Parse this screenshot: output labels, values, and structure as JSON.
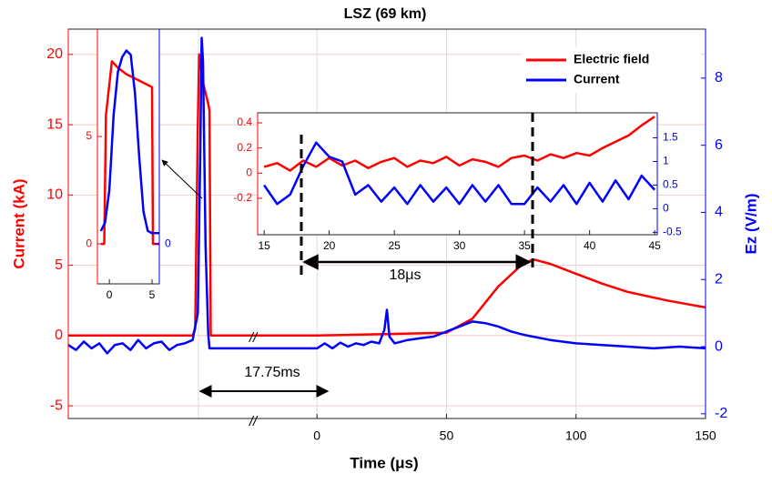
{
  "chart_data": [
    {
      "type": "line",
      "title": "LSZ (69 km)",
      "xlabel": "Time (μs)",
      "ylabel": "Current (kA)",
      "y2label": "Ez (V/m)",
      "xlim": [
        -96,
        150
      ],
      "xticks": [
        0,
        50,
        100,
        150
      ],
      "ylim": [
        -5.9,
        21.8
      ],
      "yticks": [
        -5,
        0,
        5,
        10,
        15,
        20
      ],
      "y2lim": [
        -2.14,
        9.46
      ],
      "y2ticks": [
        -2,
        0,
        2,
        4,
        6,
        8
      ],
      "grid": true,
      "legend": "upper right",
      "series": [
        {
          "name": "Electric field",
          "color": "#ff0000",
          "x": [
            -96,
            -48,
            -47,
            -46,
            -45.5,
            -44,
            -42,
            -41.5,
            -41,
            0,
            50,
            60,
            70,
            80,
            84,
            90,
            100,
            110,
            120,
            135,
            150
          ],
          "values": [
            0,
            0,
            0.5,
            15,
            20,
            18,
            16.5,
            16,
            0,
            0,
            0.2,
            1.2,
            3.5,
            5.2,
            5.4,
            5.1,
            4.4,
            3.7,
            3.1,
            2.5,
            2
          ]
        },
        {
          "name": "Current",
          "color": "#0000ff",
          "axis": "y2",
          "x": [
            -96,
            -93,
            -90,
            -87,
            -84,
            -81,
            -78,
            -75,
            -72,
            -69,
            -66,
            -63,
            -60,
            -57,
            -54,
            -51,
            -48,
            -46,
            -45,
            -44.5,
            -44,
            -43,
            -42,
            -41.5,
            0,
            3,
            6,
            9,
            12,
            15,
            18,
            21,
            24,
            26,
            27,
            28,
            30,
            35,
            40,
            45,
            50,
            55,
            60,
            65,
            70,
            75,
            80,
            90,
            100,
            110,
            120,
            130,
            140,
            150
          ],
          "values": [
            0.05,
            -0.1,
            0.15,
            -0.05,
            0.1,
            -0.2,
            0.05,
            0.1,
            -0.1,
            0.2,
            -0.05,
            0.1,
            0.15,
            -0.1,
            0.05,
            0.1,
            0.2,
            1,
            6,
            9.2,
            8.5,
            3,
            0.4,
            -0.05,
            -0.05,
            0.1,
            -0.05,
            0.12,
            0,
            0.1,
            0.05,
            0.15,
            0.1,
            0.5,
            1.1,
            0.3,
            0.1,
            0.2,
            0.25,
            0.3,
            0.45,
            0.6,
            0.75,
            0.7,
            0.6,
            0.45,
            0.35,
            0.2,
            0.1,
            0.05,
            0,
            -0.05,
            0,
            -0.05
          ]
        }
      ],
      "annotations": [
        "17.75ms",
        "18μs",
        "//",
        "//"
      ]
    },
    {
      "type": "line",
      "xlim": [
        -1.4,
        5.85
      ],
      "xticks": [
        0,
        5
      ],
      "ylim": [
        -1.86,
        10
      ],
      "yticks": [
        0,
        5
      ],
      "y2lim": [
        -1.86,
        10
      ],
      "y2ticks": [
        0
      ],
      "grid": false,
      "series": [
        {
          "name": null,
          "color": "#ff0000",
          "x": [
            -1,
            -0.6,
            -0.4,
            0.3,
            1,
            2,
            3,
            4,
            5,
            5.1,
            5.8
          ],
          "values": [
            0,
            0,
            6,
            8.5,
            8.2,
            7.9,
            7.7,
            7.5,
            7.3,
            0,
            0
          ]
        },
        {
          "name": null,
          "color": "#0000ff",
          "axis": "y2",
          "x": [
            -1,
            -0.5,
            0,
            0.5,
            1,
            1.5,
            2,
            2.5,
            3,
            3.5,
            4,
            4.5,
            5,
            5.8
          ],
          "values": [
            0.6,
            1,
            2.5,
            6,
            8,
            8.7,
            9,
            8.8,
            7,
            4,
            1.5,
            0.6,
            0.5,
            0.5
          ]
        }
      ]
    },
    {
      "type": "line",
      "xlim": [
        14.5,
        45.2
      ],
      "xticks": [
        15,
        20,
        25,
        30,
        35,
        40,
        45
      ],
      "ylim": [
        -0.49,
        0.48
      ],
      "yticks": [
        -0.2,
        0,
        0.2,
        0.4
      ],
      "y2lim": [
        -0.55,
        2.03
      ],
      "y2ticks": [
        -0.5,
        0,
        0.5,
        1,
        1.5
      ],
      "grid": false,
      "x": [
        15,
        16,
        17,
        18,
        19,
        20,
        21,
        22,
        23,
        24,
        25,
        26,
        27,
        28,
        29,
        30,
        31,
        32,
        33,
        34,
        35,
        36,
        37,
        38,
        39,
        40,
        41,
        42,
        43,
        44,
        45
      ],
      "series": [
        {
          "name": null,
          "color": "#ff0000",
          "values": [
            0.05,
            0.08,
            0.02,
            0.1,
            0.05,
            0.12,
            0.06,
            0.1,
            0.04,
            0.09,
            0.12,
            0.05,
            0.1,
            0.08,
            0.13,
            0.06,
            0.11,
            0.09,
            0.05,
            0.12,
            0.14,
            0.1,
            0.15,
            0.12,
            0.16,
            0.14,
            0.2,
            0.25,
            0.3,
            0.38,
            0.45
          ]
        },
        {
          "name": null,
          "color": "#0000ff",
          "axis": "y2",
          "values": [
            0.5,
            0.1,
            0.3,
            0.9,
            1.4,
            1.1,
            1.0,
            0.3,
            0.5,
            0.15,
            0.45,
            0.1,
            0.5,
            0.15,
            0.45,
            0.1,
            0.5,
            0.15,
            0.5,
            0.1,
            0.1,
            0.45,
            0.15,
            0.5,
            0.1,
            0.55,
            0.15,
            0.6,
            0.2,
            0.7,
            0.4
          ]
        }
      ]
    }
  ]
}
